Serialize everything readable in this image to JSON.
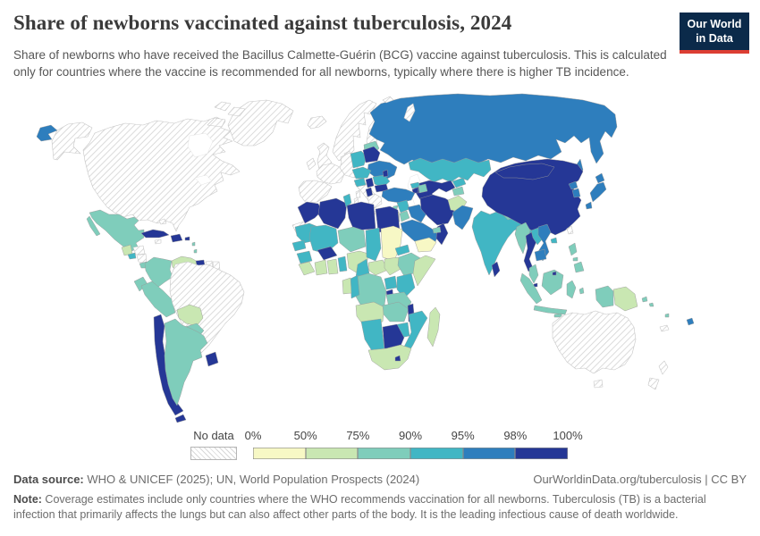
{
  "header": {
    "title": "Share of newborns vaccinated against tuberculosis, 2024",
    "subtitle": "Share of newborns who have received the Bacillus Calmette-Guérin (BCG) vaccine against tuberculosis. This is calculated only for countries where the vaccine is recommended for all newborns, typically where there is higher TB incidence.",
    "logo": {
      "line1": "Our World",
      "line2": "in Data",
      "bg_color": "#0b2a4a",
      "accent_color": "#dc3e33"
    }
  },
  "legend": {
    "no_data_label": "No data",
    "tick_labels": [
      "0%",
      "50%",
      "75%",
      "90%",
      "95%",
      "98%",
      "100%"
    ]
  },
  "footer": {
    "source_label": "Data source:",
    "source_text": " WHO & UNICEF (2025); UN, World Population Prospects (2024)",
    "link_text": "OurWorldinData.org/tuberculosis | CC BY",
    "note_label": "Note:",
    "note_text": " Coverage estimates include only countries where the WHO recommends vaccination for all newborns. Tuberculosis (TB) is a bacterial infection that primarily affects the lungs but can also affect other parts of the body. It is the leading infectious cause of death worldwide."
  },
  "chart_data": {
    "type": "choropleth",
    "title": "Share of newborns vaccinated against tuberculosis, 2024",
    "year": 2024,
    "unit": "% of newborns receiving BCG vaccine",
    "bin_edges": [
      0,
      50,
      75,
      90,
      95,
      98,
      100
    ],
    "legend_bins": [
      {
        "range": "0–50%",
        "color": "#f7f8c5"
      },
      {
        "range": "50–75%",
        "color": "#c9e7b2"
      },
      {
        "range": "75–90%",
        "color": "#7fcdbb"
      },
      {
        "range": "90–95%",
        "color": "#41b6c4"
      },
      {
        "range": "95–98%",
        "color": "#2e7ebd"
      },
      {
        "range": "98–100%",
        "color": "#253796"
      }
    ],
    "no_data_style": "diagonal-hatch",
    "country_bins": {
      "northern-america": "no_data",
      "alaska": "no_data",
      "greenland": "no_data",
      "arctic-islands": "no_data",
      "iceland": "no_data",
      "uk": "no_data",
      "ireland": "no_data",
      "scandinavia": "no_data",
      "finland": "no_data",
      "denmark": "no_data",
      "iberia": "no_data",
      "france": "no_data",
      "central-europe": "no_data",
      "italy": "no_data",
      "corsica-sardinia": "no_data",
      "greece": "no_data",
      "honduras": "no_data",
      "nicaragua": "no_data",
      "jamaica": "no_data",
      "bahamas": "no_data",
      "trinidad": "no_data",
      "suriname": "no_data",
      "french-guiana": "no_data",
      "western-sahara": "no_data",
      "novaya-zemlya": "no_data",
      "svalbard": "no_data",
      "taiwan": "no_data",
      "australia": "no_data",
      "new-zealand": "no_data",
      "new-caledonia": "no_data",
      "sudan": 0,
      "yemen": 0,
      "guatemala": 1,
      "venezuela": 1,
      "bolivia": 1,
      "sierra-leone-liberia": 1,
      "ivory-coast": 1,
      "ghana": 1,
      "nigeria": 1,
      "central-african-republic": 1,
      "south-sudan": 1,
      "somalia": 1,
      "gabon": 1,
      "angola": 1,
      "south-africa": 1,
      "madagascar": 1,
      "afghanistan": 1,
      "israel": 1,
      "papua-new-guinea": 1,
      "mexico": 2,
      "costa-rica": 2,
      "colombia": 2,
      "ecuador": 2,
      "peru": 2,
      "argentina": 2,
      "paraguay": 2,
      "baltics": 2,
      "azerbaijan": 2,
      "tajikistan": 2,
      "jordan": 2,
      "uae": 2,
      "cyprus": 2,
      "niger": 2,
      "drc": 2,
      "tanzania": 2,
      "zambia": 2,
      "ethiopia": 2,
      "nepal": 2,
      "myanmar": 2,
      "malaysia": 2,
      "indonesia": 2,
      "philippines": 2,
      "solomon-islands": 2,
      "vanuatu": 2,
      "antilles": 2,
      "el-salvador": 3,
      "tunisia": 3,
      "mauritania": 3,
      "mali": 3,
      "senegal": 3,
      "guinea": 3,
      "togo-benin": 3,
      "cameroon": 3,
      "chad": 3,
      "eritrea": 3,
      "kenya": 3,
      "uganda": 3,
      "congo": 3,
      "mozambique": 3,
      "zimbabwe": 3,
      "namibia": 3,
      "poland": 3,
      "czech-slovakia-hungary": 3,
      "romania": 3,
      "bosnia-croatia": 3,
      "georgia": 3,
      "kazakhstan": 3,
      "kyrgyzstan": 3,
      "syria": 3,
      "india": 3,
      "bhutan": 3,
      "bangladesh": 3,
      "laos": 3,
      "hainan": 3,
      "russia": 4,
      "chukotka": 4,
      "sakhalin": 4,
      "japan": 4,
      "north-korea": 4,
      "south-korea": 4,
      "ukraine": 4,
      "turkey": 4,
      "iraq": 4,
      "saudi-arabia": 4,
      "pakistan": 4,
      "vietnam": 4,
      "cambodia": 4,
      "fiji": 4,
      "morocco": 5,
      "algeria": 5,
      "libya": 5,
      "egypt": 5,
      "iran": 5,
      "oman": 5,
      "china": 5,
      "mongolia": 5,
      "sri-lanka": 5,
      "thailand": 5,
      "singapore": 5,
      "brunei": 5,
      "cuba": 5,
      "hispaniola": 5,
      "panama": 5,
      "guyana": 5,
      "chile": 5,
      "uruguay": 5,
      "belarus": 5,
      "serbia": 5,
      "bulgaria": 5,
      "albania": 5,
      "moldova": 5,
      "armenia": 5,
      "central-asia": 5,
      "burkina-faso": 5,
      "malawi": 5,
      "botswana": 5,
      "rwanda-burundi": 5,
      "lesotho": 5,
      "puerto-rico": 5
    }
  }
}
